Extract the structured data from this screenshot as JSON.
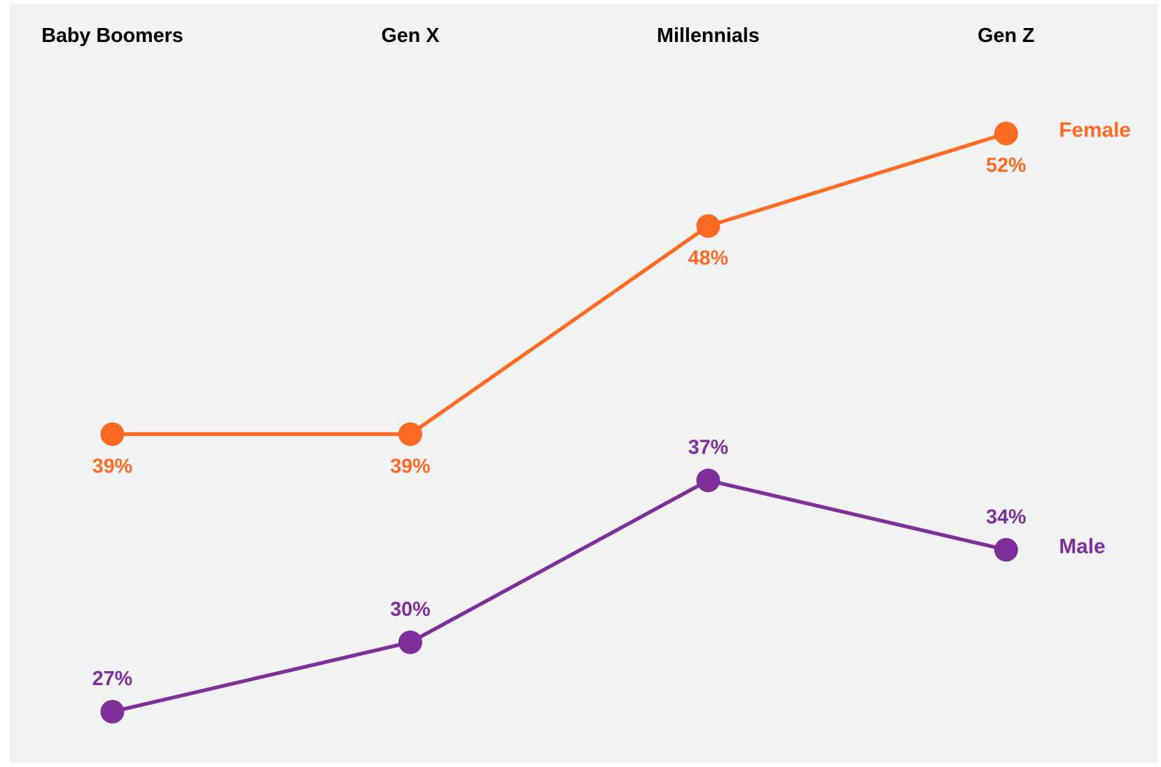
{
  "chart_data": {
    "type": "line",
    "categories": [
      "Baby Boomers",
      "Gen X",
      "Millennials",
      "Gen Z"
    ],
    "series": [
      {
        "name": "Female",
        "color": "#ff6a22",
        "values": [
          39,
          39,
          48,
          52
        ],
        "value_labels": [
          "39%",
          "39%",
          "48%",
          "52%"
        ]
      },
      {
        "name": "Male",
        "color": "#7e2f9c",
        "values": [
          27,
          30,
          37,
          34
        ],
        "value_labels": [
          "27%",
          "30%",
          "37%",
          "34%"
        ]
      }
    ]
  }
}
